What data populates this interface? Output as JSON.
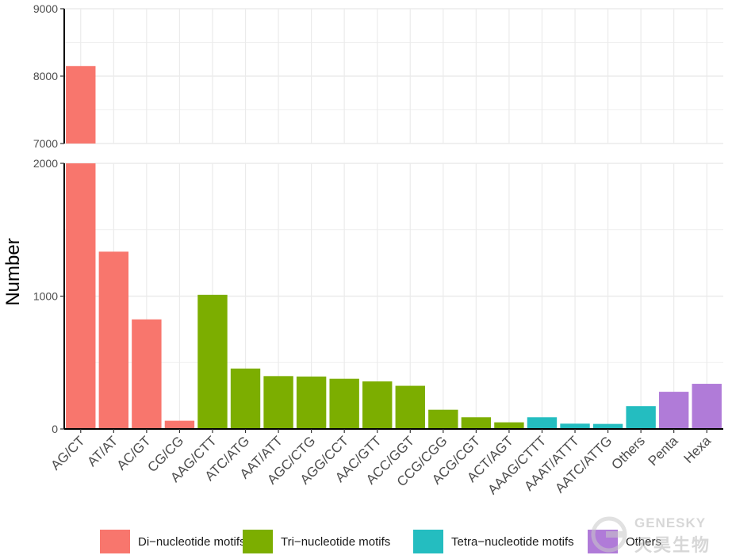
{
  "chart_data": {
    "type": "bar",
    "ylabel": "Number",
    "xlabel": "",
    "broken_axis": {
      "lower_range": [
        0,
        2000
      ],
      "upper_range": [
        7000,
        9000
      ],
      "lower_ticks": [
        "0",
        "1000",
        "2000"
      ],
      "upper_ticks": [
        "7000",
        "8000",
        "9000"
      ]
    },
    "categories": [
      "AG/CT",
      "AT/AT",
      "AC/GT",
      "CG/CG",
      "AAG/CTT",
      "ATC/ATG",
      "AAT/ATT",
      "AGC/CTG",
      "AGG/CCT",
      "AAC/GTT",
      "ACC/GGT",
      "CCG/CGG",
      "ACG/CGT",
      "ACT/AGT",
      "AAAG/CTTT",
      "AAAT/ATTT",
      "AATC/ATTG",
      "Others",
      "Penta",
      "Hexa"
    ],
    "values": [
      8150,
      1335,
      825,
      62,
      1010,
      455,
      398,
      395,
      378,
      358,
      325,
      145,
      88,
      50,
      88,
      40,
      38,
      172,
      280,
      340
    ],
    "groups": [
      "di",
      "di",
      "di",
      "di",
      "tri",
      "tri",
      "tri",
      "tri",
      "tri",
      "tri",
      "tri",
      "tri",
      "tri",
      "tri",
      "tetra",
      "tetra",
      "tetra",
      "tetra",
      "other",
      "other"
    ],
    "colors": {
      "di": "#F8766D",
      "tri": "#7CAE00",
      "tetra": "#24BDC0",
      "other": "#B07BD8"
    },
    "grid": true,
    "legend_position": "bottom",
    "legend": [
      {
        "key": "di",
        "label": "Di−nucleotide motifs"
      },
      {
        "key": "tri",
        "label": "Tri−nucleotide motifs"
      },
      {
        "key": "tetra",
        "label": "Tetra−nucleotide motifs"
      },
      {
        "key": "other",
        "label": "Others"
      }
    ]
  },
  "watermark": {
    "en": "GENESKY",
    "cn": "天昊生物"
  }
}
